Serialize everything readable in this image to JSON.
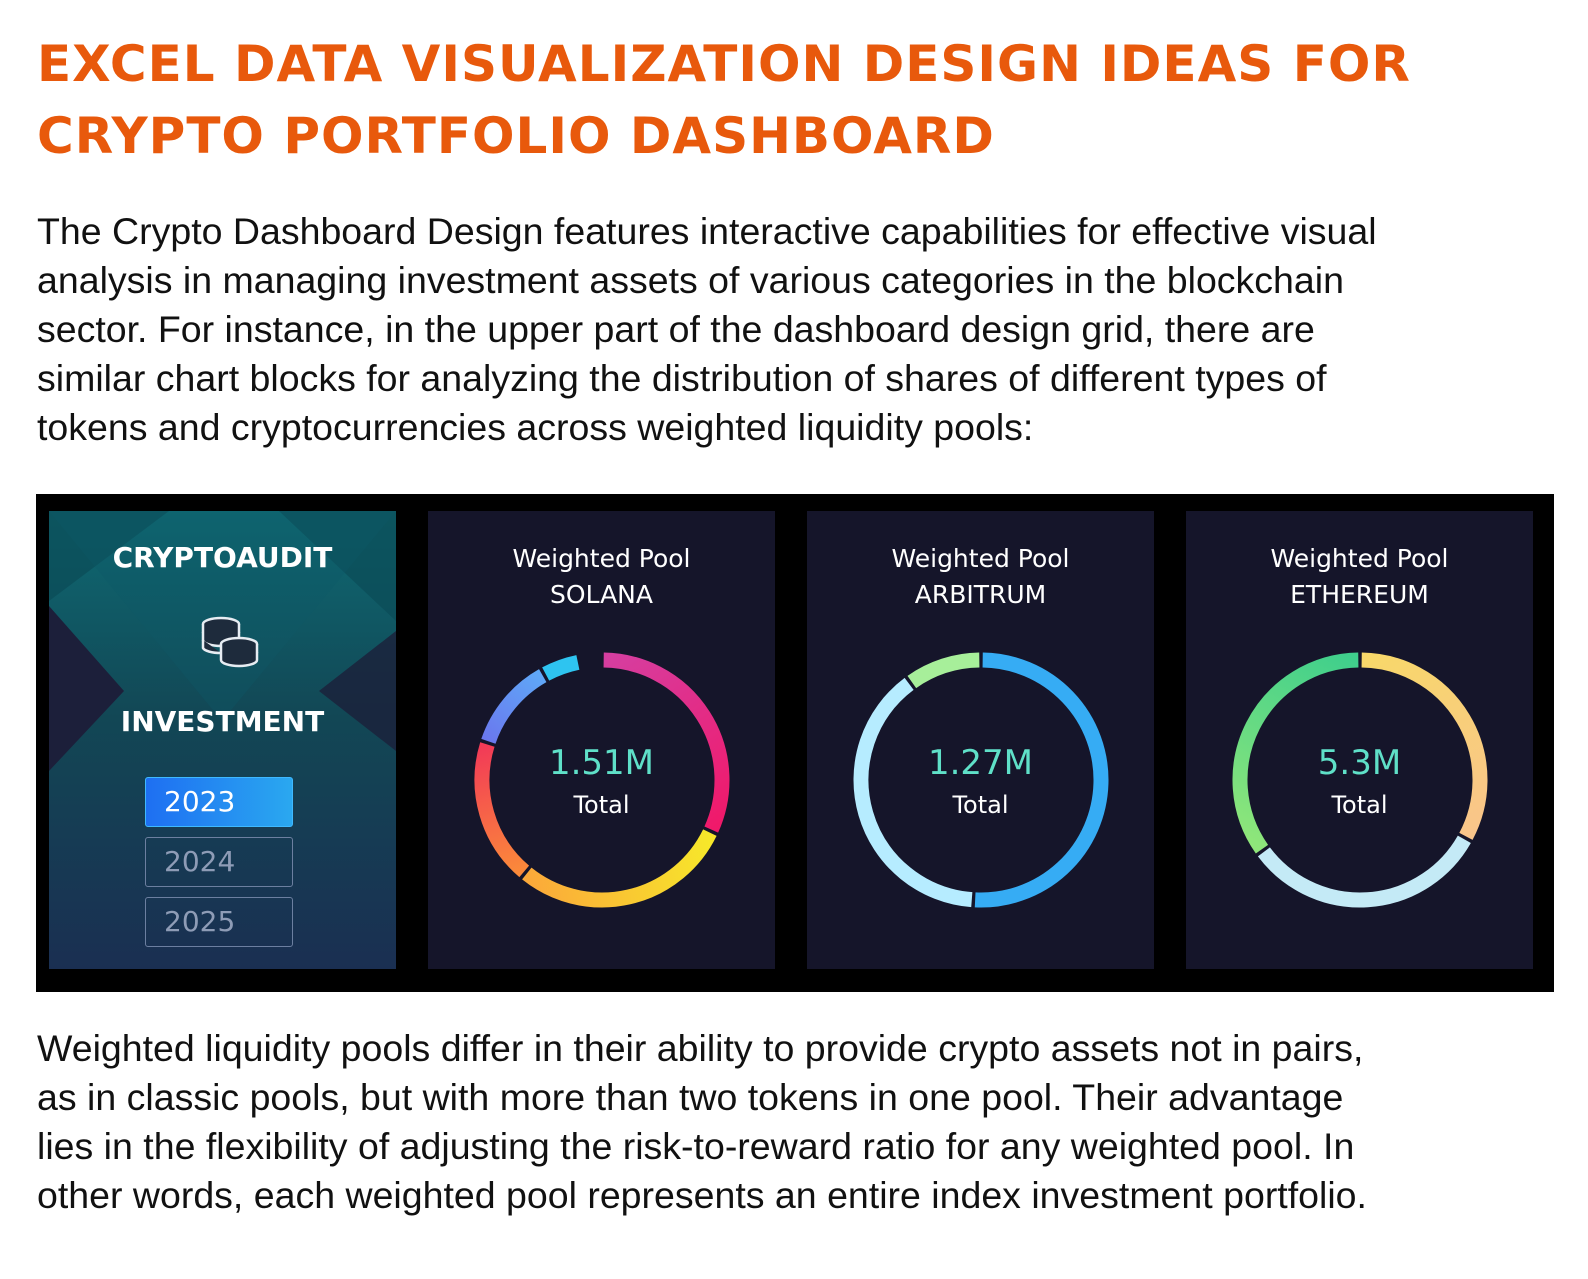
{
  "title": {
    "line1": "EXCEL DATA VISUALIZATION DESIGN IDEAS FOR",
    "line2": "CRYPTO PORTFOLIO DASHBOARD"
  },
  "intro": {
    "line1": "The Crypto Dashboard Design features interactive capabilities for effective visual",
    "line2": "analysis in managing investment assets of various categories in the blockchain",
    "line3": "sector. For instance, in the upper part of the dashboard design grid, there are",
    "line4": "similar chart blocks for analyzing the distribution of shares of different types of",
    "line5": "tokens and cryptocurrencies across weighted liquidity pools:"
  },
  "dashboard": {
    "brand": "CRYPTOAUDIT",
    "section": "INVESTMENT",
    "coins_icon": "coins-icon",
    "years": [
      {
        "label": "2023",
        "active": true
      },
      {
        "label": "2024",
        "active": false
      },
      {
        "label": "2025",
        "active": false
      }
    ],
    "pools": [
      {
        "heading": "Weighted Pool",
        "name": "SOLANA",
        "total": "1.51M",
        "total_label": "Total",
        "segments": [
          {
            "share": 0.32,
            "from": "#d63ea0",
            "to": "#f0196a"
          },
          {
            "share": 0.29,
            "from": "#f7e82a",
            "to": "#fba93a"
          },
          {
            "share": 0.19,
            "from": "#fb8a3a",
            "to": "#f23a57"
          },
          {
            "share": 0.12,
            "from": "#6a78ee",
            "to": "#5fa8f7"
          },
          {
            "share": 0.05,
            "from": "#2ec4f0",
            "to": "#2ec4f0"
          }
        ]
      },
      {
        "heading": "Weighted Pool",
        "name": "ARBITRUM",
        "total": "1.27M",
        "total_label": "Total",
        "segments": [
          {
            "share": 0.51,
            "from": "#36acf4",
            "to": "#36acf4"
          },
          {
            "share": 0.39,
            "from": "#b6ecff",
            "to": "#b6ecff"
          },
          {
            "share": 0.1,
            "from": "#a7ef9a",
            "to": "#a7ef9a"
          }
        ]
      },
      {
        "heading": "Weighted Pool",
        "name": "ETHEREUM",
        "total": "5.3M",
        "total_label": "Total",
        "segments": [
          {
            "share": 0.33,
            "from": "#f8d86a",
            "to": "#f9c58a"
          },
          {
            "share": 0.32,
            "from": "#c4eaf6",
            "to": "#c4eaf6"
          },
          {
            "share": 0.35,
            "from": "#8fe67a",
            "to": "#3fcf8c"
          }
        ]
      }
    ]
  },
  "outro": {
    "line1": "Weighted liquidity pools differ in their ability to provide crypto assets not in pairs,",
    "line2": "as in classic pools, but with more than two tokens in one pool. Their advantage",
    "line3": "lies in the flexibility of adjusting the risk-to-reward ratio for any weighted pool. In",
    "line4": "other words, each weighted pool represents an entire index investment portfolio."
  }
}
